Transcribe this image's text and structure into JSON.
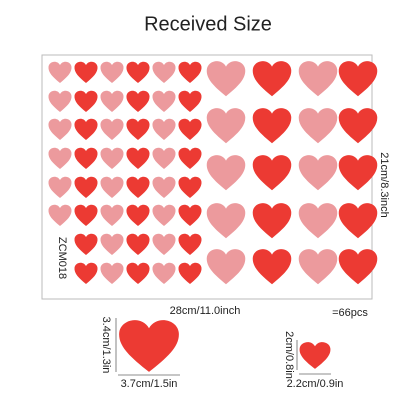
{
  "header": {
    "title": "Received Size"
  },
  "sheet": {
    "height_label": "21cm/8.3inch",
    "width_label": "28cm/11.0inch",
    "code": "ZCM018",
    "count": "=66pcs"
  },
  "large_heart": {
    "height_label": "3.4cm/1.3in",
    "width_label": "3.7cm/1.5in"
  },
  "small_heart": {
    "height_label": "2cm/0.8in",
    "width_label": "2.2cm/0.9in"
  }
}
